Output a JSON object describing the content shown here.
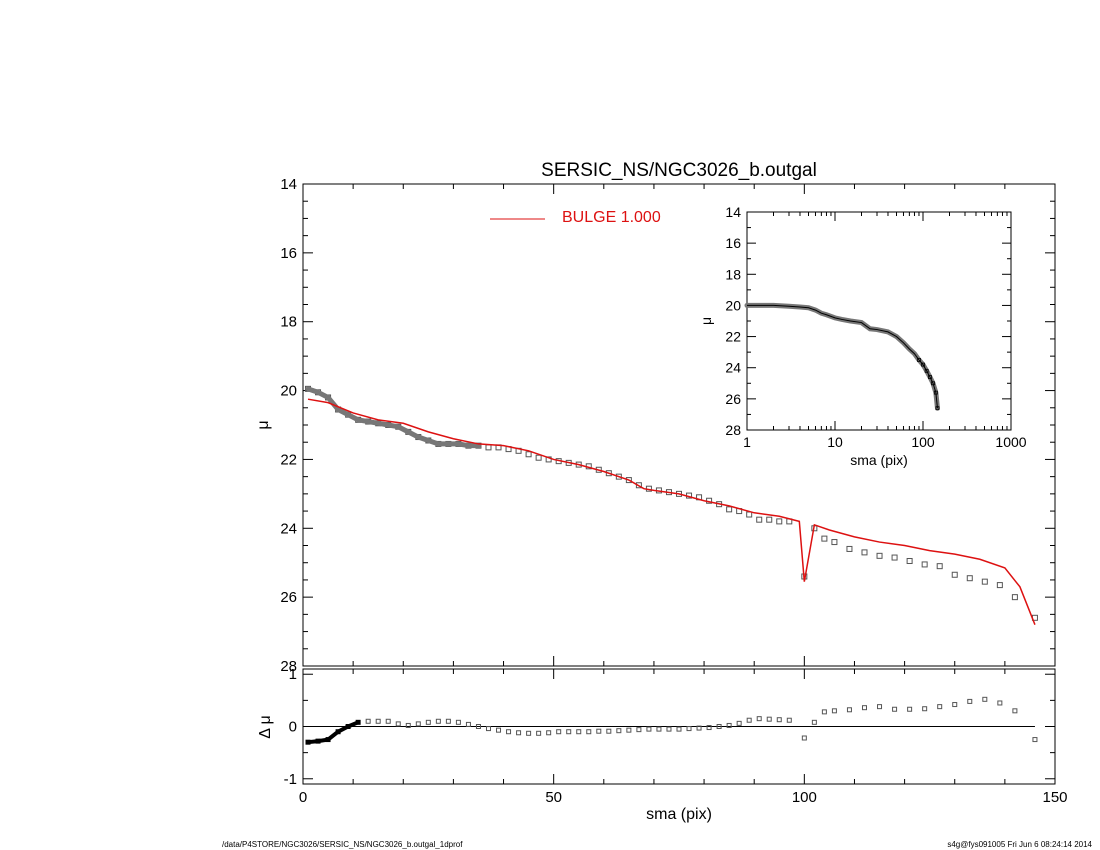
{
  "chart_data": {
    "type": "scatter",
    "title": "SERSIC_NS/NGC3026_b.outgal",
    "xlabel": "sma (pix)",
    "ylabel": "μ",
    "residual_ylabel": "Δ μ",
    "xlim": [
      0,
      150
    ],
    "ylim": [
      28,
      14
    ],
    "x_ticks": [
      "0",
      "50",
      "100",
      "150"
    ],
    "y_ticks": [
      "14",
      "16",
      "18",
      "20",
      "22",
      "24",
      "26",
      "28"
    ],
    "residual_ylim": [
      -1.1,
      1.1
    ],
    "residual_ticks": [
      "1",
      "0",
      "-1"
    ],
    "legend": {
      "label": "BULGE  1.000",
      "color": "#dd1111",
      "placement": "top-center"
    },
    "series": [
      {
        "name": "BULGE  1.000",
        "kind": "line",
        "color": "#dd1111",
        "x": [
          1,
          5,
          10,
          15,
          20,
          25,
          30,
          35,
          40,
          45,
          50,
          55,
          60,
          65,
          68,
          70,
          75,
          80,
          85,
          90,
          95,
          99,
          100,
          102,
          105,
          110,
          115,
          120,
          125,
          130,
          135,
          140,
          143,
          146
        ],
        "y": [
          20.25,
          20.35,
          20.65,
          20.85,
          20.95,
          21.2,
          21.4,
          21.55,
          21.6,
          21.75,
          22.0,
          22.15,
          22.35,
          22.6,
          22.85,
          22.9,
          23.0,
          23.2,
          23.35,
          23.55,
          23.65,
          23.8,
          25.55,
          23.9,
          24.05,
          24.25,
          24.4,
          24.5,
          24.65,
          24.75,
          24.9,
          25.15,
          25.7,
          26.8
        ]
      },
      {
        "name": "",
        "kind": "points",
        "color": "#555555",
        "x": [
          1,
          3,
          5,
          7,
          9,
          11,
          13,
          15,
          17,
          19,
          21,
          23,
          25,
          27,
          29,
          31,
          33,
          35,
          37,
          39,
          41,
          43,
          45,
          47,
          49,
          51,
          53,
          55,
          57,
          59,
          61,
          63,
          65,
          67,
          69,
          71,
          73,
          75,
          77,
          79,
          81,
          83,
          85,
          87,
          89,
          91,
          93,
          95,
          97,
          100,
          102,
          104,
          106,
          109,
          112,
          115,
          118,
          121,
          124,
          127,
          130,
          133,
          136,
          139,
          142,
          146
        ],
        "y": [
          19.95,
          20.05,
          20.2,
          20.55,
          20.7,
          20.85,
          20.9,
          20.95,
          21.0,
          21.05,
          21.2,
          21.35,
          21.45,
          21.55,
          21.55,
          21.55,
          21.6,
          21.6,
          21.65,
          21.65,
          21.7,
          21.75,
          21.85,
          21.95,
          22.0,
          22.05,
          22.1,
          22.15,
          22.2,
          22.3,
          22.4,
          22.5,
          22.6,
          22.75,
          22.85,
          22.9,
          22.95,
          23.0,
          23.05,
          23.1,
          23.2,
          23.3,
          23.45,
          23.5,
          23.6,
          23.75,
          23.75,
          23.8,
          23.8,
          25.4,
          24.0,
          24.3,
          24.4,
          24.6,
          24.7,
          24.8,
          24.85,
          24.95,
          25.05,
          25.1,
          25.35,
          25.45,
          25.55,
          25.65,
          26.0,
          26.6
        ]
      }
    ],
    "residuals": {
      "x": [
        1,
        3,
        5,
        7,
        9,
        11,
        13,
        15,
        17,
        19,
        21,
        23,
        25,
        27,
        29,
        31,
        33,
        35,
        37,
        39,
        41,
        43,
        45,
        47,
        49,
        51,
        53,
        55,
        57,
        59,
        61,
        63,
        65,
        67,
        69,
        71,
        73,
        75,
        77,
        79,
        81,
        83,
        85,
        87,
        89,
        91,
        93,
        95,
        97,
        100,
        102,
        104,
        106,
        109,
        112,
        115,
        118,
        121,
        124,
        127,
        130,
        133,
        136,
        139,
        142,
        146
      ],
      "y": [
        -0.3,
        -0.28,
        -0.25,
        -0.1,
        0.0,
        0.08,
        0.1,
        0.1,
        0.1,
        0.05,
        0.02,
        0.05,
        0.08,
        0.1,
        0.1,
        0.08,
        0.04,
        0.0,
        -0.04,
        -0.07,
        -0.1,
        -0.12,
        -0.13,
        -0.13,
        -0.12,
        -0.1,
        -0.1,
        -0.1,
        -0.1,
        -0.09,
        -0.09,
        -0.08,
        -0.07,
        -0.06,
        -0.05,
        -0.05,
        -0.05,
        -0.05,
        -0.04,
        -0.03,
        -0.02,
        0.0,
        0.02,
        0.06,
        0.12,
        0.15,
        0.14,
        0.13,
        0.12,
        -0.22,
        0.08,
        0.28,
        0.3,
        0.32,
        0.36,
        0.38,
        0.33,
        0.33,
        0.34,
        0.38,
        0.42,
        0.48,
        0.52,
        0.45,
        0.3,
        -0.25
      ]
    },
    "inset": {
      "type": "scatter",
      "xlabel": "sma (pix)",
      "ylabel": "μ",
      "xscale": "log",
      "xlim": [
        1,
        1000
      ],
      "ylim": [
        28,
        14
      ],
      "x_ticks": [
        "1",
        "10",
        "100",
        "1000"
      ],
      "y_ticks": [
        "14",
        "16",
        "18",
        "20",
        "22",
        "24",
        "26",
        "28"
      ],
      "x": [
        1,
        2,
        3,
        4,
        5,
        6,
        7,
        8,
        10,
        12,
        15,
        20,
        25,
        30,
        40,
        50,
        60,
        70,
        80,
        90,
        100,
        110,
        120,
        130,
        140,
        146
      ],
      "y": [
        20.0,
        20.0,
        20.05,
        20.1,
        20.15,
        20.3,
        20.5,
        20.6,
        20.8,
        20.9,
        21.0,
        21.1,
        21.5,
        21.55,
        21.7,
        22.0,
        22.4,
        22.8,
        23.1,
        23.5,
        23.8,
        24.2,
        24.6,
        25.0,
        25.6,
        26.6
      ]
    }
  },
  "footer": {
    "left": "/data/P4STORE/NGC3026/SERSIC_NS/NGC3026_b.outgal_1dprof",
    "right": "s4g@fys091005  Fri Jun  6 08:24:14 2014"
  }
}
